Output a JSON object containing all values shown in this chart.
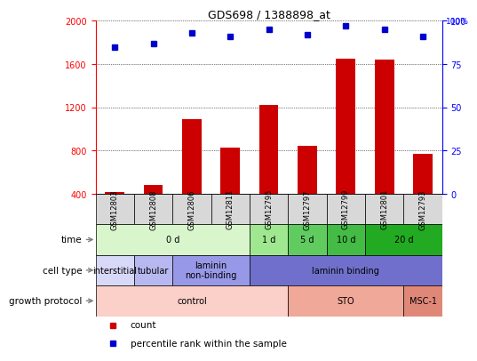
{
  "title": "GDS698 / 1388898_at",
  "samples": [
    "GSM12803",
    "GSM12808",
    "GSM12806",
    "GSM12811",
    "GSM12795",
    "GSM12797",
    "GSM12799",
    "GSM12801",
    "GSM12793"
  ],
  "counts": [
    415,
    480,
    1090,
    830,
    1220,
    840,
    1650,
    1640,
    770
  ],
  "percentiles": [
    85,
    87,
    93,
    91,
    95,
    92,
    97,
    95,
    91
  ],
  "ylim_left": [
    400,
    2000
  ],
  "ylim_right": [
    0,
    100
  ],
  "yticks_left": [
    400,
    800,
    1200,
    1600,
    2000
  ],
  "yticks_right": [
    0,
    25,
    50,
    75,
    100
  ],
  "bar_color": "#cc0000",
  "dot_color": "#0000cc",
  "bar_width": 0.5,
  "time_labels": [
    {
      "label": "0 d",
      "start": 0,
      "end": 3,
      "color": "#d8f5cc"
    },
    {
      "label": "1 d",
      "start": 4,
      "end": 4,
      "color": "#a0e890"
    },
    {
      "label": "5 d",
      "start": 5,
      "end": 5,
      "color": "#60cc60"
    },
    {
      "label": "10 d",
      "start": 6,
      "end": 6,
      "color": "#44bb44"
    },
    {
      "label": "20 d",
      "start": 7,
      "end": 8,
      "color": "#22aa22"
    }
  ],
  "cell_type_labels": [
    {
      "label": "interstitial",
      "start": 0,
      "end": 0,
      "color": "#d8d8f8"
    },
    {
      "label": "tubular",
      "start": 1,
      "end": 1,
      "color": "#b8b8f0"
    },
    {
      "label": "laminin\nnon-binding",
      "start": 2,
      "end": 3,
      "color": "#9898e8"
    },
    {
      "label": "laminin binding",
      "start": 4,
      "end": 8,
      "color": "#7070cc"
    }
  ],
  "growth_protocol_labels": [
    {
      "label": "control",
      "start": 0,
      "end": 4,
      "color": "#fad0c8"
    },
    {
      "label": "STO",
      "start": 5,
      "end": 7,
      "color": "#f0a898"
    },
    {
      "label": "MSC-1",
      "start": 8,
      "end": 8,
      "color": "#e08878"
    }
  ],
  "sample_col_color": "#d8d8d8",
  "row_label_names": [
    "time",
    "cell type",
    "growth protocol"
  ],
  "legend_items": [
    {
      "label": "count",
      "color": "#cc0000"
    },
    {
      "label": "percentile rank within the sample",
      "color": "#0000cc"
    }
  ]
}
